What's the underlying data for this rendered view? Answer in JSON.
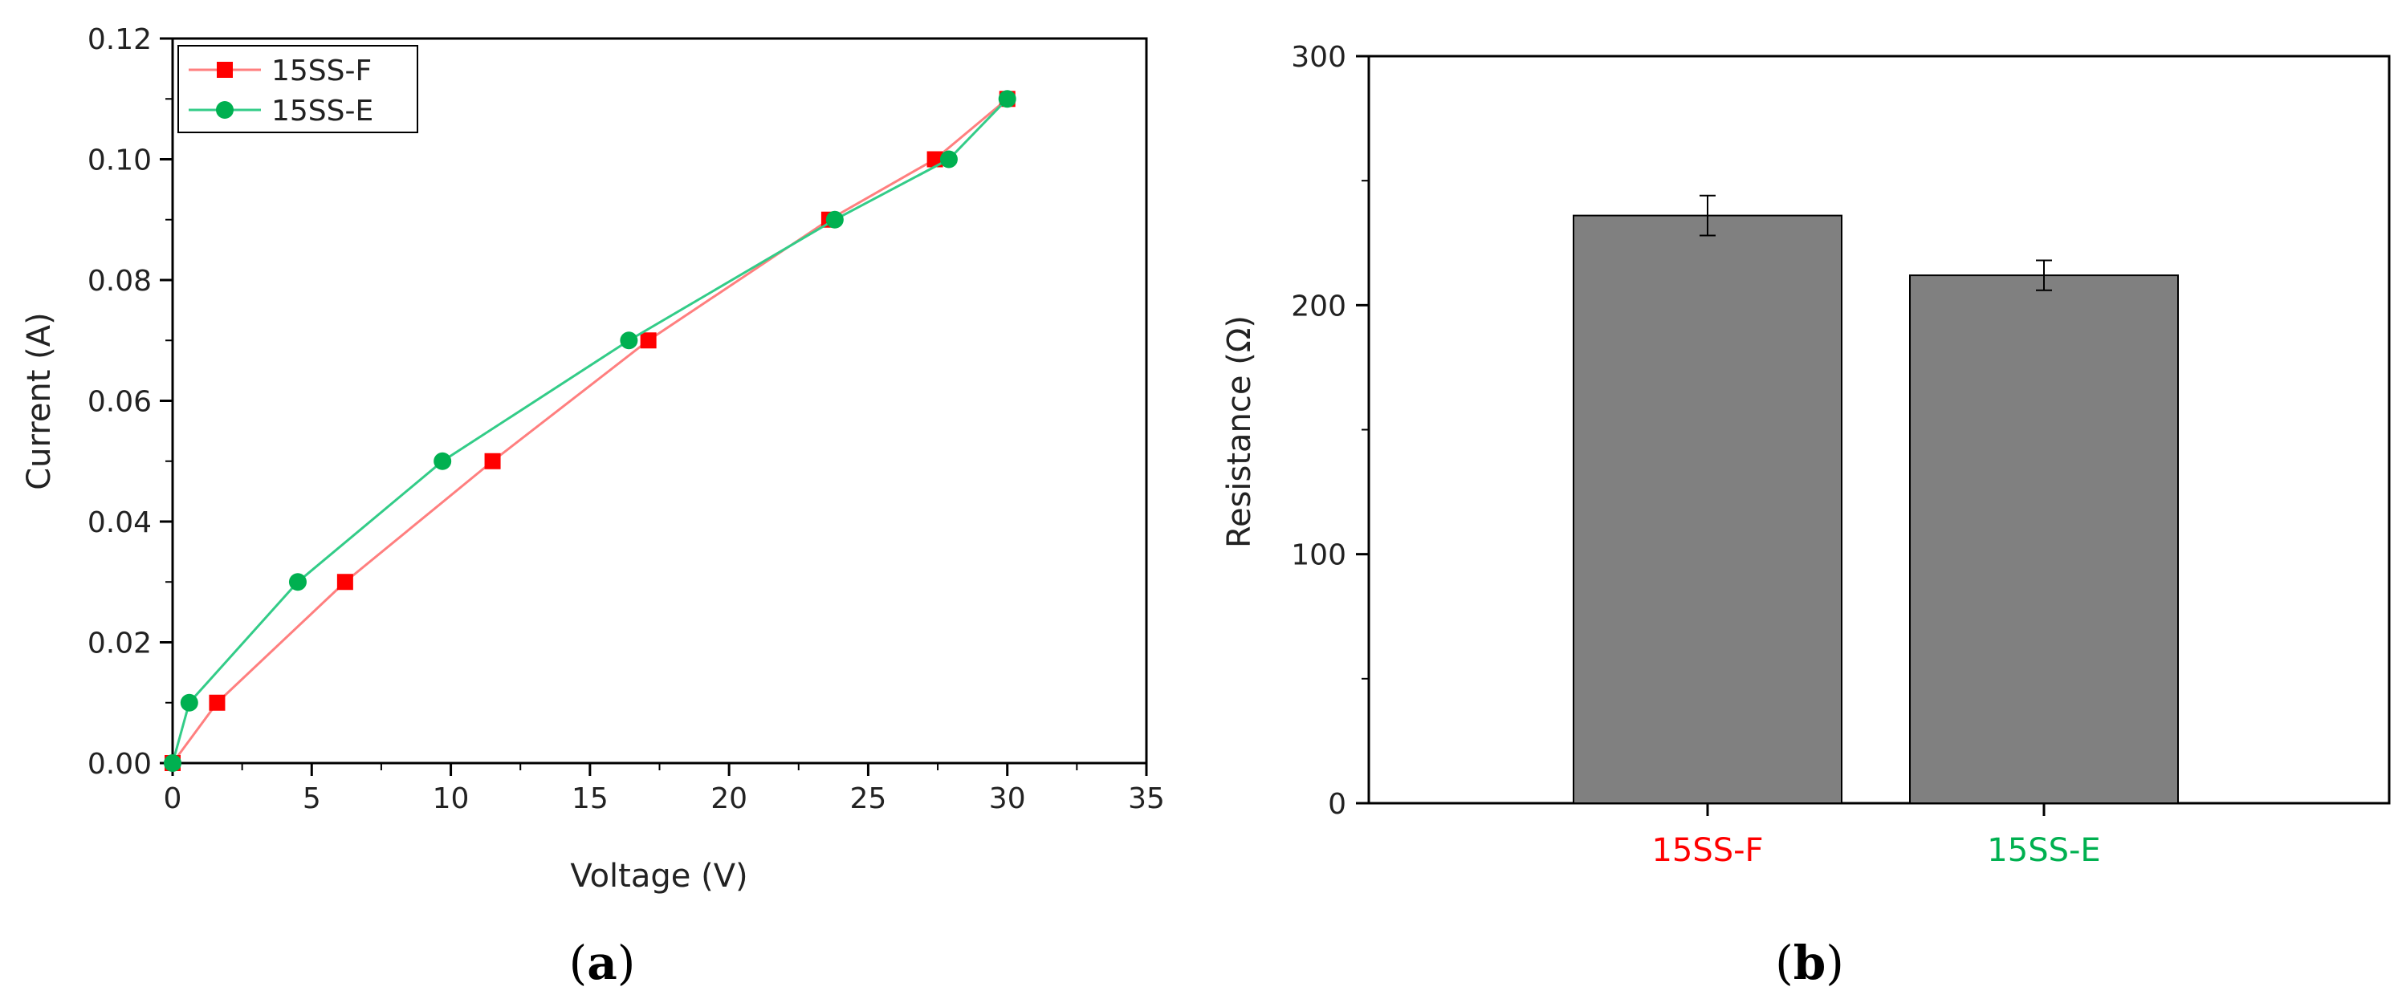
{
  "colors": {
    "series_f": "#ff0000",
    "series_f_line": "#ff7f7f",
    "series_e": "#00b050",
    "series_e_line": "#33cc88",
    "bar_fill": "#808080",
    "axis": "#000000"
  },
  "panels": {
    "a": {
      "open": "(",
      "letter": "a",
      "close": ")"
    },
    "b": {
      "open": "(",
      "letter": "b",
      "close": ")"
    }
  },
  "chart_data": [
    {
      "type": "line",
      "xlabel": "Voltage (V)",
      "ylabel": "Current (A)",
      "xlim": [
        0,
        35
      ],
      "ylim": [
        0,
        0.12
      ],
      "x_ticks": [
        "0",
        "5",
        "10",
        "15",
        "20",
        "25",
        "30",
        "35"
      ],
      "y_ticks": [
        "0.00",
        "0.02",
        "0.04",
        "0.06",
        "0.08",
        "0.10",
        "0.12"
      ],
      "legend_position": "top-left",
      "grid": false,
      "series": [
        {
          "name": "15SS-F",
          "marker": "square",
          "x": [
            0,
            1.6,
            6.2,
            11.5,
            17.1,
            23.6,
            27.4,
            30.0
          ],
          "y": [
            0.0,
            0.01,
            0.03,
            0.05,
            0.07,
            0.09,
            0.1,
            0.11
          ]
        },
        {
          "name": "15SS-E",
          "marker": "circle",
          "x": [
            0,
            0.6,
            4.5,
            9.7,
            16.4,
            23.8,
            27.9,
            30.0
          ],
          "y": [
            0.0,
            0.01,
            0.03,
            0.05,
            0.07,
            0.09,
            0.1,
            0.11
          ]
        }
      ]
    },
    {
      "type": "bar",
      "ylabel": "Resistance (Ω)",
      "ylim": [
        0,
        300
      ],
      "y_ticks": [
        "0",
        "100",
        "200",
        "300"
      ],
      "grid": false,
      "categories": [
        "15SS-F",
        "15SS-E"
      ],
      "values": [
        236,
        212
      ],
      "errors": [
        8,
        6
      ]
    }
  ]
}
